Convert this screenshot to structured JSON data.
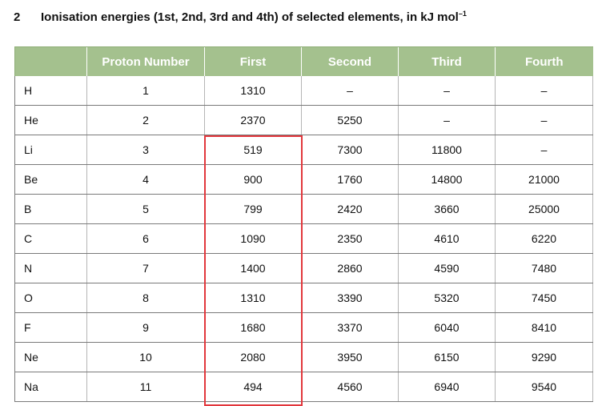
{
  "heading": {
    "number": "2",
    "text": "Ionisation energies (1st, 2nd, 3rd and 4th) of selected elements, in kJ mol",
    "superscript": "–1"
  },
  "table": {
    "header_color": "#a4c18e",
    "highlight_color": "#e2373c",
    "columns": [
      "",
      "Proton Number",
      "First",
      "Second",
      "Third",
      "Fourth"
    ],
    "rows": [
      [
        "H",
        "1",
        "1310",
        "–",
        "–",
        "–"
      ],
      [
        "He",
        "2",
        "2370",
        "5250",
        "–",
        "–"
      ],
      [
        "Li",
        "3",
        "519",
        "7300",
        "11800",
        "–"
      ],
      [
        "Be",
        "4",
        "900",
        "1760",
        "14800",
        "21000"
      ],
      [
        "B",
        "5",
        "799",
        "2420",
        "3660",
        "25000"
      ],
      [
        "C",
        "6",
        "1090",
        "2350",
        "4610",
        "6220"
      ],
      [
        "N",
        "7",
        "1400",
        "2860",
        "4590",
        "7480"
      ],
      [
        "O",
        "8",
        "1310",
        "3390",
        "5320",
        "7450"
      ],
      [
        "F",
        "9",
        "1680",
        "3370",
        "6040",
        "8410"
      ],
      [
        "Ne",
        "10",
        "2080",
        "3950",
        "6150",
        "9290"
      ],
      [
        "Na",
        "11",
        "494",
        "4560",
        "6940",
        "9540"
      ]
    ]
  }
}
